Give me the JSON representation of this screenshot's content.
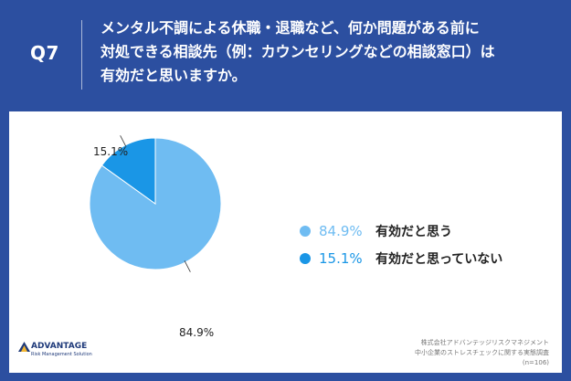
{
  "header": {
    "question_no": "Q7",
    "question_lines": [
      "メンタル不調による休職・退職など、何か問題がある前に",
      "対処できる相談先（例：カウンセリングなどの相談窓口）は",
      "有効だと思いますか。"
    ]
  },
  "colors": {
    "background": "#2c4fa0",
    "yes": "#6fbcf2",
    "no": "#1a96e6"
  },
  "chart_data": {
    "type": "pie",
    "labels": [
      "有効だと思う",
      "有効だと思っていない"
    ],
    "values": [
      84.9,
      15.1
    ],
    "data_labels": [
      "84.9%",
      "15.1%"
    ],
    "legend_position": "right"
  },
  "legend": [
    {
      "pct": "84.9%",
      "label": "有効だと思う"
    },
    {
      "pct": "15.1%",
      "label": "有効だと思っていない"
    }
  ],
  "logo": {
    "name": "ADVANTAGE",
    "sub": "Risk Management Solution",
    "icon": "advantage-logo-icon"
  },
  "source": {
    "line1": "株式会社アドバンテッジリスクマネジメント",
    "line2": "中小企業のストレスチェックに関する実態調査",
    "line3": "(n=106)"
  }
}
